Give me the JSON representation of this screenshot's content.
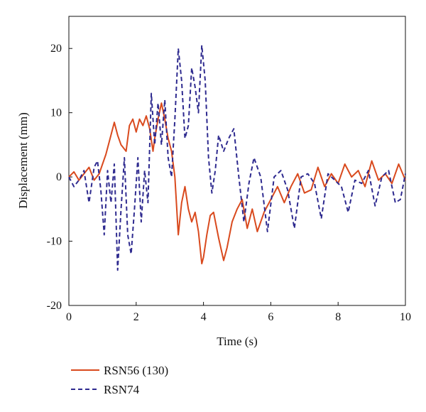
{
  "chart_data": {
    "type": "line",
    "title": "",
    "xlabel": "Time (s)",
    "ylabel": "Displacement (mm)",
    "xlim": [
      0,
      10
    ],
    "ylim": [
      -20,
      25
    ],
    "xticks": [
      0,
      2,
      4,
      6,
      8,
      10
    ],
    "xtick_labels": [
      "0",
      "2",
      "4",
      "6",
      "8",
      "10"
    ],
    "yticks": [
      -20,
      -10,
      0,
      10,
      20
    ],
    "ytick_labels": [
      "-20",
      "-10",
      "0",
      "10",
      "20"
    ],
    "grid": false,
    "legend_position": "bottom-left, below plot",
    "series": [
      {
        "name": "RSN56 (130)",
        "style": "solid",
        "color": "#d94a1e",
        "x": [
          0,
          0.15,
          0.3,
          0.45,
          0.6,
          0.75,
          0.9,
          1.0,
          1.1,
          1.2,
          1.35,
          1.45,
          1.55,
          1.7,
          1.8,
          1.9,
          2.0,
          2.1,
          2.2,
          2.3,
          2.4,
          2.5,
          2.55,
          2.65,
          2.75,
          2.85,
          2.95,
          3.05,
          3.15,
          3.25,
          3.35,
          3.45,
          3.55,
          3.65,
          3.75,
          3.85,
          3.95,
          4.0,
          4.1,
          4.2,
          4.3,
          4.45,
          4.6,
          4.7,
          4.85,
          5.0,
          5.15,
          5.3,
          5.45,
          5.6,
          5.8,
          6.0,
          6.2,
          6.4,
          6.6,
          6.8,
          7.0,
          7.2,
          7.4,
          7.6,
          7.8,
          8.0,
          8.2,
          8.4,
          8.6,
          8.8,
          9.0,
          9.2,
          9.4,
          9.6,
          9.8,
          10.0
        ],
        "values": [
          0,
          0.8,
          -0.5,
          0.5,
          1.5,
          -0.5,
          0.5,
          2.0,
          3.5,
          5.5,
          8.5,
          6.5,
          5.0,
          4.0,
          8.0,
          9.0,
          7.0,
          9.0,
          8.0,
          9.5,
          7.5,
          4.0,
          6.0,
          9.0,
          11.5,
          9.0,
          6.0,
          4.0,
          0.0,
          -9.0,
          -4.0,
          -1.5,
          -5.0,
          -7.0,
          -5.5,
          -8.5,
          -13.5,
          -12.5,
          -9.0,
          -6.0,
          -5.5,
          -9.5,
          -13.0,
          -11.0,
          -7.0,
          -5.0,
          -3.5,
          -8.0,
          -5.0,
          -8.5,
          -5.5,
          -3.5,
          -1.5,
          -4.0,
          -1.5,
          0.5,
          -2.5,
          -2.0,
          1.5,
          -1.5,
          0.5,
          -1.0,
          2.0,
          0.0,
          1.0,
          -1.5,
          2.5,
          -0.5,
          0.5,
          -1.0,
          2.0,
          -0.5
        ]
      },
      {
        "name": "RSN74",
        "style": "dashed",
        "color": "#2e2a8f",
        "x": [
          0,
          0.15,
          0.3,
          0.45,
          0.6,
          0.75,
          0.85,
          0.95,
          1.05,
          1.15,
          1.25,
          1.35,
          1.45,
          1.55,
          1.65,
          1.75,
          1.85,
          1.95,
          2.05,
          2.15,
          2.25,
          2.35,
          2.45,
          2.55,
          2.65,
          2.75,
          2.85,
          2.95,
          3.05,
          3.15,
          3.25,
          3.35,
          3.45,
          3.55,
          3.65,
          3.75,
          3.85,
          3.95,
          4.05,
          4.15,
          4.25,
          4.35,
          4.45,
          4.6,
          4.75,
          4.9,
          5.05,
          5.2,
          5.35,
          5.5,
          5.7,
          5.9,
          6.1,
          6.3,
          6.5,
          6.7,
          6.9,
          7.1,
          7.3,
          7.5,
          7.7,
          7.9,
          8.1,
          8.3,
          8.5,
          8.7,
          8.9,
          9.1,
          9.3,
          9.5,
          9.7,
          9.85,
          10.0
        ],
        "values": [
          0,
          -1.5,
          -0.5,
          1.0,
          -4.0,
          1.5,
          2.5,
          -2.0,
          -9.0,
          1.0,
          -4.0,
          2.0,
          -14.5,
          -5.0,
          3.0,
          -9.0,
          -12.0,
          -5.0,
          3.0,
          -7.0,
          1.0,
          -4.0,
          13.0,
          5.0,
          11.5,
          5.0,
          12.0,
          3.0,
          0.0,
          9.0,
          20.0,
          15.0,
          6.0,
          8.0,
          17.0,
          14.0,
          10.0,
          20.5,
          15.0,
          3.0,
          -2.5,
          1.0,
          6.5,
          4.0,
          6.0,
          7.5,
          0.0,
          -7.0,
          -1.0,
          3.0,
          0.0,
          -8.5,
          0.0,
          1.0,
          -2.0,
          -8.0,
          0.0,
          0.5,
          -1.0,
          -6.5,
          0.5,
          -0.5,
          -1.5,
          -5.5,
          -0.5,
          -1.0,
          1.0,
          -4.5,
          0.0,
          1.0,
          -4.0,
          -3.5,
          0.5
        ]
      }
    ]
  }
}
